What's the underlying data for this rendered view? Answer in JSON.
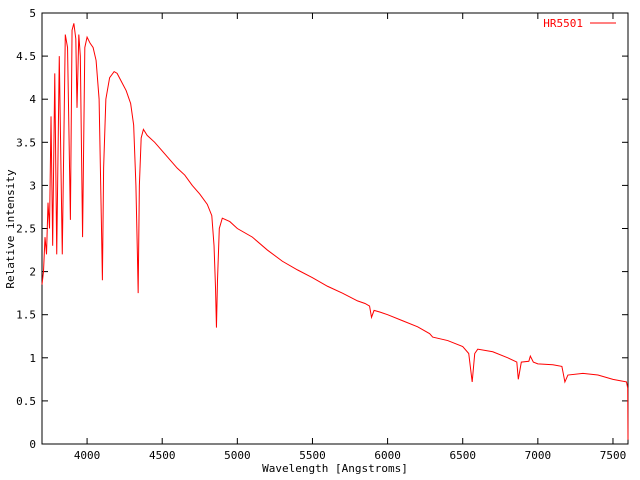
{
  "chart_data": {
    "type": "line",
    "xlabel": "Wavelength [Angstroms]",
    "ylabel": "Relative intensity",
    "xlim": [
      3700,
      7600
    ],
    "ylim": [
      0,
      5
    ],
    "xticks": [
      4000,
      4500,
      5000,
      5500,
      6000,
      6500,
      7000,
      7500
    ],
    "yticks": [
      0,
      0.5,
      1,
      1.5,
      2,
      2.5,
      3,
      3.5,
      4,
      4.5,
      5
    ],
    "grid": false,
    "legend": "top-right",
    "x": [
      3700,
      3710,
      3720,
      3730,
      3740,
      3750,
      3760,
      3771,
      3785,
      3798,
      3815,
      3835,
      3855,
      3870,
      3889,
      3900,
      3912,
      3925,
      3933,
      3945,
      3955,
      3970,
      3985,
      4000,
      4020,
      4040,
      4060,
      4080,
      4095,
      4102,
      4110,
      4125,
      4150,
      4180,
      4200,
      4230,
      4260,
      4290,
      4310,
      4325,
      4335,
      4340,
      4348,
      4360,
      4375,
      4400,
      4450,
      4500,
      4550,
      4600,
      4650,
      4700,
      4750,
      4800,
      4830,
      4845,
      4855,
      4861,
      4868,
      4880,
      4900,
      4950,
      5000,
      5100,
      5200,
      5300,
      5400,
      5500,
      5600,
      5700,
      5800,
      5850,
      5880,
      5893,
      5910,
      5950,
      6000,
      6100,
      6200,
      6280,
      6300,
      6400,
      6500,
      6540,
      6563,
      6580,
      6600,
      6700,
      6800,
      6860,
      6870,
      6890,
      6940,
      6950,
      6970,
      7000,
      7100,
      7160,
      7180,
      7200,
      7300,
      7400,
      7500,
      7590,
      7598,
      7600
    ],
    "series": [
      {
        "name": "HR5501",
        "color": "#ff0000",
        "values": [
          1.85,
          2.0,
          2.4,
          2.2,
          2.8,
          2.5,
          3.8,
          2.3,
          4.3,
          2.2,
          4.5,
          2.2,
          4.75,
          4.6,
          2.6,
          4.8,
          4.88,
          4.7,
          3.9,
          4.75,
          4.5,
          2.4,
          4.6,
          4.72,
          4.65,
          4.6,
          4.45,
          4.0,
          2.6,
          1.9,
          3.2,
          4.0,
          4.25,
          4.32,
          4.3,
          4.2,
          4.1,
          3.95,
          3.7,
          3.0,
          2.2,
          1.75,
          3.0,
          3.55,
          3.65,
          3.58,
          3.5,
          3.4,
          3.3,
          3.2,
          3.12,
          3.0,
          2.9,
          2.78,
          2.65,
          2.3,
          1.8,
          1.35,
          1.9,
          2.5,
          2.62,
          2.58,
          2.5,
          2.4,
          2.25,
          2.12,
          2.02,
          1.93,
          1.83,
          1.75,
          1.66,
          1.63,
          1.6,
          1.47,
          1.55,
          1.53,
          1.5,
          1.43,
          1.36,
          1.28,
          1.24,
          1.2,
          1.13,
          1.05,
          0.72,
          1.05,
          1.1,
          1.07,
          1.0,
          0.95,
          0.75,
          0.95,
          0.96,
          1.02,
          0.95,
          0.93,
          0.92,
          0.9,
          0.72,
          0.8,
          0.82,
          0.8,
          0.75,
          0.72,
          0.65,
          0.05
        ]
      }
    ]
  }
}
